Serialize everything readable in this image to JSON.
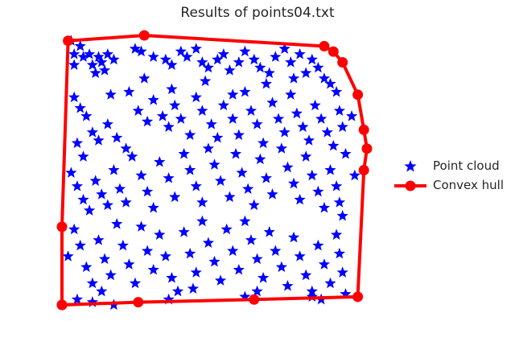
{
  "chart_data": {
    "type": "scatter",
    "title": "Results of points04.txt",
    "xlabel": "",
    "ylabel": "",
    "axes_visible": false,
    "grid": false,
    "legend_position": "center-right",
    "xlim": [
      -0.03,
      1.03
    ],
    "ylim": [
      -0.03,
      1.03
    ],
    "series": [
      {
        "name": "Point cloud",
        "marker": "star",
        "color": "#0000ff",
        "points": [
          [
            0.03,
            0.98
          ],
          [
            0.04,
            0.93
          ],
          [
            0.06,
            0.96
          ],
          [
            0.07,
            0.92
          ],
          [
            0.04,
            0.89
          ],
          [
            0.09,
            0.93
          ],
          [
            0.1,
            0.89
          ],
          [
            0.12,
            0.92
          ],
          [
            0.13,
            0.9
          ],
          [
            0.15,
            0.93
          ],
          [
            0.17,
            0.91
          ],
          [
            0.14,
            0.87
          ],
          [
            0.11,
            0.86
          ],
          [
            0.24,
            0.95
          ],
          [
            0.26,
            0.94
          ],
          [
            0.3,
            0.92
          ],
          [
            0.34,
            0.91
          ],
          [
            0.36,
            0.89
          ],
          [
            0.39,
            0.94
          ],
          [
            0.41,
            0.92
          ],
          [
            0.44,
            0.95
          ],
          [
            0.46,
            0.9
          ],
          [
            0.48,
            0.88
          ],
          [
            0.51,
            0.91
          ],
          [
            0.53,
            0.93
          ],
          [
            0.55,
            0.87
          ],
          [
            0.58,
            0.9
          ],
          [
            0.6,
            0.94
          ],
          [
            0.63,
            0.91
          ],
          [
            0.65,
            0.88
          ],
          [
            0.68,
            0.86
          ],
          [
            0.7,
            0.92
          ],
          [
            0.73,
            0.95
          ],
          [
            0.75,
            0.9
          ],
          [
            0.78,
            0.93
          ],
          [
            0.8,
            0.86
          ],
          [
            0.82,
            0.91
          ],
          [
            0.84,
            0.88
          ],
          [
            0.86,
            0.84
          ],
          [
            0.88,
            0.82
          ],
          [
            0.9,
            0.79
          ],
          [
            0.04,
            0.77
          ],
          [
            0.06,
            0.73
          ],
          [
            0.08,
            0.7
          ],
          [
            0.1,
            0.64
          ],
          [
            0.12,
            0.61
          ],
          [
            0.05,
            0.6
          ],
          [
            0.15,
            0.67
          ],
          [
            0.18,
            0.62
          ],
          [
            0.21,
            0.58
          ],
          [
            0.22,
            0.79
          ],
          [
            0.25,
            0.72
          ],
          [
            0.28,
            0.68
          ],
          [
            0.3,
            0.76
          ],
          [
            0.33,
            0.7
          ],
          [
            0.35,
            0.66
          ],
          [
            0.37,
            0.74
          ],
          [
            0.39,
            0.69
          ],
          [
            0.42,
            0.63
          ],
          [
            0.44,
            0.77
          ],
          [
            0.46,
            0.72
          ],
          [
            0.49,
            0.67
          ],
          [
            0.51,
            0.62
          ],
          [
            0.53,
            0.74
          ],
          [
            0.56,
            0.69
          ],
          [
            0.58,
            0.63
          ],
          [
            0.6,
            0.79
          ],
          [
            0.62,
            0.72
          ],
          [
            0.64,
            0.67
          ],
          [
            0.66,
            0.6
          ],
          [
            0.69,
            0.75
          ],
          [
            0.71,
            0.69
          ],
          [
            0.73,
            0.64
          ],
          [
            0.75,
            0.78
          ],
          [
            0.77,
            0.71
          ],
          [
            0.79,
            0.66
          ],
          [
            0.81,
            0.61
          ],
          [
            0.83,
            0.74
          ],
          [
            0.85,
            0.69
          ],
          [
            0.87,
            0.64
          ],
          [
            0.89,
            0.59
          ],
          [
            0.91,
            0.72
          ],
          [
            0.92,
            0.66
          ],
          [
            0.93,
            0.56
          ],
          [
            0.03,
            0.49
          ],
          [
            0.05,
            0.44
          ],
          [
            0.07,
            0.39
          ],
          [
            0.09,
            0.35
          ],
          [
            0.11,
            0.46
          ],
          [
            0.13,
            0.41
          ],
          [
            0.15,
            0.37
          ],
          [
            0.17,
            0.5
          ],
          [
            0.19,
            0.43
          ],
          [
            0.21,
            0.38
          ],
          [
            0.23,
            0.55
          ],
          [
            0.26,
            0.48
          ],
          [
            0.28,
            0.42
          ],
          [
            0.3,
            0.36
          ],
          [
            0.32,
            0.53
          ],
          [
            0.35,
            0.47
          ],
          [
            0.37,
            0.4
          ],
          [
            0.4,
            0.56
          ],
          [
            0.42,
            0.5
          ],
          [
            0.44,
            0.44
          ],
          [
            0.46,
            0.38
          ],
          [
            0.48,
            0.58
          ],
          [
            0.5,
            0.52
          ],
          [
            0.52,
            0.46
          ],
          [
            0.55,
            0.4
          ],
          [
            0.57,
            0.56
          ],
          [
            0.59,
            0.49
          ],
          [
            0.61,
            0.43
          ],
          [
            0.63,
            0.37
          ],
          [
            0.65,
            0.54
          ],
          [
            0.67,
            0.47
          ],
          [
            0.69,
            0.41
          ],
          [
            0.72,
            0.58
          ],
          [
            0.74,
            0.51
          ],
          [
            0.76,
            0.45
          ],
          [
            0.78,
            0.39
          ],
          [
            0.8,
            0.55
          ],
          [
            0.82,
            0.48
          ],
          [
            0.84,
            0.42
          ],
          [
            0.86,
            0.36
          ],
          [
            0.88,
            0.5
          ],
          [
            0.9,
            0.44
          ],
          [
            0.91,
            0.38
          ],
          [
            0.92,
            0.33
          ],
          [
            0.02,
            0.18
          ],
          [
            0.04,
            0.28
          ],
          [
            0.06,
            0.22
          ],
          [
            0.08,
            0.14
          ],
          [
            0.1,
            0.08
          ],
          [
            0.12,
            0.24
          ],
          [
            0.14,
            0.17
          ],
          [
            0.16,
            0.11
          ],
          [
            0.18,
            0.3
          ],
          [
            0.2,
            0.22
          ],
          [
            0.22,
            0.15
          ],
          [
            0.24,
            0.08
          ],
          [
            0.26,
            0.29
          ],
          [
            0.28,
            0.2
          ],
          [
            0.3,
            0.13
          ],
          [
            0.32,
            0.26
          ],
          [
            0.34,
            0.18
          ],
          [
            0.36,
            0.1
          ],
          [
            0.38,
            0.05
          ],
          [
            0.4,
            0.27
          ],
          [
            0.42,
            0.19
          ],
          [
            0.44,
            0.12
          ],
          [
            0.46,
            0.31
          ],
          [
            0.48,
            0.23
          ],
          [
            0.5,
            0.16
          ],
          [
            0.52,
            0.09
          ],
          [
            0.54,
            0.28
          ],
          [
            0.56,
            0.2
          ],
          [
            0.58,
            0.13
          ],
          [
            0.6,
            0.31
          ],
          [
            0.62,
            0.24
          ],
          [
            0.64,
            0.17
          ],
          [
            0.66,
            0.1
          ],
          [
            0.68,
            0.27
          ],
          [
            0.7,
            0.2
          ],
          [
            0.72,
            0.14
          ],
          [
            0.74,
            0.07
          ],
          [
            0.76,
            0.25
          ],
          [
            0.78,
            0.18
          ],
          [
            0.8,
            0.11
          ],
          [
            0.82,
            0.05
          ],
          [
            0.84,
            0.22
          ],
          [
            0.86,
            0.15
          ],
          [
            0.88,
            0.08
          ],
          [
            0.9,
            0.26
          ],
          [
            0.91,
            0.19
          ],
          [
            0.92,
            0.12
          ],
          [
            0.93,
            0.04
          ],
          [
            0.05,
            0.02
          ],
          [
            0.1,
            0.01
          ],
          [
            0.17,
            0.0
          ],
          [
            0.35,
            0.02
          ],
          [
            0.6,
            0.03
          ],
          [
            0.82,
            0.03
          ],
          [
            0.95,
            0.7
          ],
          [
            0.96,
            0.48
          ],
          [
            0.07,
            0.55
          ],
          [
            0.27,
            0.84
          ],
          [
            0.47,
            0.83
          ],
          [
            0.67,
            0.82
          ],
          [
            0.16,
            0.78
          ],
          [
            0.36,
            0.8
          ],
          [
            0.56,
            0.78
          ],
          [
            0.76,
            0.84
          ],
          [
            0.13,
            0.05
          ],
          [
            0.43,
            0.06
          ],
          [
            0.64,
            0.05
          ],
          [
            0.85,
            0.02
          ]
        ]
      },
      {
        "name": "Convex hull",
        "marker": "circle",
        "line": true,
        "color": "#ff0000",
        "points": [
          [
            0.0,
            0.0
          ],
          [
            0.25,
            0.01
          ],
          [
            0.63,
            0.02
          ],
          [
            0.97,
            0.03
          ],
          [
            0.99,
            0.5
          ],
          [
            1.0,
            0.58
          ],
          [
            0.99,
            0.65
          ],
          [
            0.97,
            0.78
          ],
          [
            0.92,
            0.9
          ],
          [
            0.89,
            0.94
          ],
          [
            0.86,
            0.96
          ],
          [
            0.27,
            1.0
          ],
          [
            0.02,
            0.98
          ],
          [
            0.0,
            0.29
          ],
          [
            0.0,
            0.0
          ]
        ]
      }
    ]
  }
}
